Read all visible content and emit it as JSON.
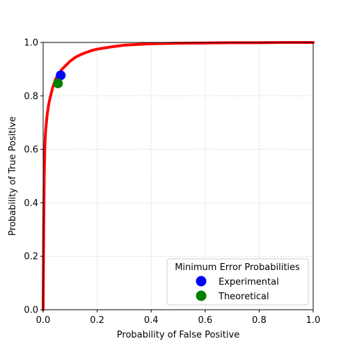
{
  "chart_data": {
    "type": "line",
    "xlabel": "Probability of False Positive",
    "ylabel": "Probability of True Positive",
    "xlim": [
      0,
      1
    ],
    "ylim": [
      0,
      1
    ],
    "xticks": [
      "0.0",
      "0.2",
      "0.4",
      "0.6",
      "0.8",
      "1.0"
    ],
    "yticks": [
      "0.0",
      "0.2",
      "0.4",
      "0.6",
      "0.8",
      "1.0"
    ],
    "grid": true,
    "curve": {
      "color": "#ff0000",
      "x": [
        0.0,
        0.002,
        0.004,
        0.006,
        0.008,
        0.01,
        0.015,
        0.02,
        0.025,
        0.03,
        0.035,
        0.04,
        0.045,
        0.05,
        0.06,
        0.07,
        0.08,
        0.09,
        0.1,
        0.12,
        0.14,
        0.16,
        0.18,
        0.2,
        0.25,
        0.3,
        0.4,
        0.5,
        0.6,
        0.7,
        0.8,
        0.9,
        1.0
      ],
      "y": [
        0.0,
        0.3,
        0.5,
        0.6,
        0.65,
        0.68,
        0.73,
        0.765,
        0.79,
        0.81,
        0.83,
        0.845,
        0.86,
        0.87,
        0.885,
        0.9,
        0.91,
        0.92,
        0.93,
        0.945,
        0.955,
        0.963,
        0.97,
        0.975,
        0.983,
        0.99,
        0.995,
        0.997,
        0.998,
        0.999,
        0.999,
        1.0,
        1.0
      ]
    },
    "points": [
      {
        "name": "Experimental",
        "x": 0.065,
        "y": 0.877,
        "color": "#0000ff"
      },
      {
        "name": "Theoretical",
        "x": 0.055,
        "y": 0.847,
        "color": "#008000"
      }
    ],
    "legend": {
      "title": "Minimum Error Probabilities",
      "placement": "lower-right"
    }
  }
}
